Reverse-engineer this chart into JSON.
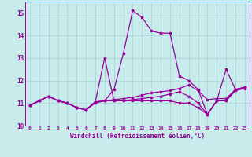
{
  "xlabel": "Windchill (Refroidissement éolien,°C)",
  "ylabel": "",
  "background_color": "#c8ecec",
  "grid_color": "#b0d8d8",
  "line_color": "#990099",
  "xlim": [
    -0.5,
    23.5
  ],
  "ylim": [
    10.0,
    15.5
  ],
  "yticks": [
    10,
    11,
    12,
    13,
    14,
    15
  ],
  "xticks": [
    0,
    1,
    2,
    3,
    4,
    5,
    6,
    7,
    8,
    9,
    10,
    11,
    12,
    13,
    14,
    15,
    16,
    17,
    18,
    19,
    20,
    21,
    22,
    23
  ],
  "lines": [
    {
      "x": [
        0,
        1,
        2,
        3,
        4,
        5,
        6,
        7,
        8,
        9,
        10,
        11,
        12,
        13,
        14,
        15,
        16,
        17,
        18,
        19,
        20,
        21,
        22,
        23
      ],
      "y": [
        10.9,
        11.1,
        11.3,
        11.1,
        11.0,
        10.8,
        10.7,
        11.0,
        11.1,
        11.6,
        13.2,
        15.1,
        14.8,
        14.2,
        14.1,
        14.1,
        12.2,
        12.0,
        11.6,
        10.5,
        11.1,
        12.5,
        11.6,
        11.7
      ]
    },
    {
      "x": [
        0,
        1,
        2,
        3,
        4,
        5,
        6,
        7,
        8,
        9,
        10,
        11,
        12,
        13,
        14,
        15,
        16,
        17,
        18,
        19,
        20,
        21,
        22,
        23
      ],
      "y": [
        10.9,
        11.1,
        11.3,
        11.1,
        11.0,
        10.8,
        10.7,
        11.05,
        13.0,
        11.1,
        11.1,
        11.15,
        11.2,
        11.25,
        11.3,
        11.4,
        11.5,
        11.3,
        11.0,
        10.5,
        11.1,
        11.1,
        11.6,
        11.7
      ]
    },
    {
      "x": [
        0,
        1,
        2,
        3,
        4,
        5,
        6,
        7,
        8,
        9,
        10,
        11,
        12,
        13,
        14,
        15,
        16,
        17,
        18,
        19,
        20,
        21,
        22,
        23
      ],
      "y": [
        10.9,
        11.1,
        11.3,
        11.1,
        11.0,
        10.8,
        10.7,
        11.05,
        11.1,
        11.15,
        11.2,
        11.25,
        11.35,
        11.45,
        11.5,
        11.55,
        11.65,
        11.8,
        11.55,
        11.15,
        11.2,
        11.2,
        11.6,
        11.7
      ]
    },
    {
      "x": [
        0,
        1,
        2,
        3,
        4,
        5,
        6,
        7,
        8,
        9,
        10,
        11,
        12,
        13,
        14,
        15,
        16,
        17,
        18,
        19,
        20,
        21,
        22,
        23
      ],
      "y": [
        10.9,
        11.1,
        11.3,
        11.1,
        11.0,
        10.8,
        10.7,
        11.05,
        11.1,
        11.1,
        11.1,
        11.1,
        11.1,
        11.1,
        11.1,
        11.1,
        11.0,
        11.0,
        10.8,
        10.5,
        11.1,
        11.1,
        11.55,
        11.65
      ]
    }
  ]
}
